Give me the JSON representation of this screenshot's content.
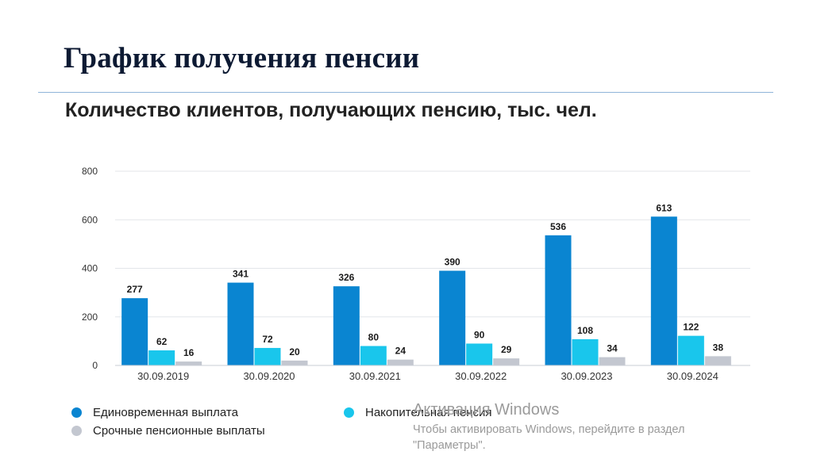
{
  "slide": {
    "title": "График получения пенсии"
  },
  "chart_data": {
    "type": "bar",
    "title": "Количество клиентов, получающих пенсию, тыс. чел.",
    "categories": [
      "30.09.2019",
      "30.09.2020",
      "30.09.2021",
      "30.09.2022",
      "30.09.2023",
      "30.09.2024"
    ],
    "series": [
      {
        "name": "Единовременная выплата",
        "color": "#0a85d1",
        "values": [
          277,
          341,
          326,
          390,
          536,
          613
        ]
      },
      {
        "name": "Накопительная пенсия",
        "color": "#19c6ec",
        "values": [
          62,
          72,
          80,
          90,
          108,
          122
        ]
      },
      {
        "name": "Срочные пенсионные выплаты",
        "color": "#c3c7d0",
        "values": [
          16,
          20,
          24,
          29,
          34,
          38
        ]
      }
    ],
    "ylim": [
      0,
      800
    ],
    "yticks": [
      "0",
      "200",
      "400",
      "600",
      "800"
    ],
    "grid": true,
    "legend_position": "bottom",
    "data_labels": true
  },
  "watermark": {
    "line1": "Активация Windows",
    "line2": "Чтобы активировать Windows, перейдите в раздел",
    "line3": "\"Параметры\"."
  }
}
